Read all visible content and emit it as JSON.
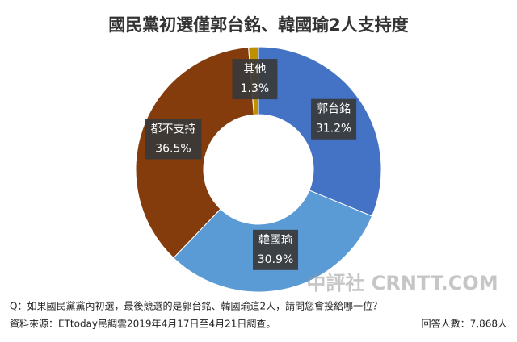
{
  "chart_data": {
    "type": "donut",
    "title": "國民黨初選僅郭台銘、韓國瑜2人支持度",
    "categories": [
      "郭台銘",
      "韓國瑜",
      "都不支持",
      "其他"
    ],
    "values": [
      31.2,
      30.9,
      36.5,
      1.3
    ],
    "value_labels": [
      "31.2%",
      "30.9%",
      "36.5%",
      "1.3%"
    ],
    "colors": [
      "#4472c4",
      "#5b9bd5",
      "#843c0c",
      "#bf9000"
    ],
    "question": "Q：如果國民黨黨內初選，最後競選的是郭台銘、韓國瑜這2人，請問您會投給哪一位？",
    "source": "資料來源：ETtoday民調雲2019年4月17日至4月21日調查。",
    "sample": "回答人數：7,868人",
    "watermark": "中評社 CRNTT.COM"
  }
}
